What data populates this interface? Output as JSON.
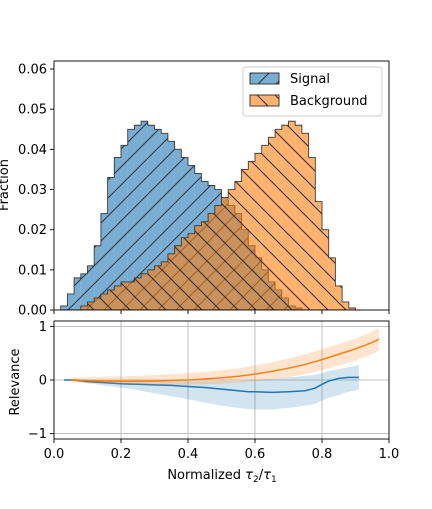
{
  "chart_data": [
    {
      "type": "histogram",
      "panel": "top",
      "ylabel": "Fraction",
      "xlim": [
        0.0,
        1.0
      ],
      "ylim": [
        0.0,
        0.062
      ],
      "yticks": [
        0.0,
        0.01,
        0.02,
        0.03,
        0.04,
        0.05,
        0.06
      ],
      "ytick_labels": [
        "0.00",
        "0.01",
        "0.02",
        "0.03",
        "0.04",
        "0.05",
        "0.06"
      ],
      "grid": false,
      "legend_position": "upper-right",
      "bin_width": 0.02,
      "series": [
        {
          "name": "Signal",
          "color": "#1f77b4",
          "hatch": "forward-slash",
          "bin_start": 0.02,
          "values": [
            0.001,
            0.004,
            0.008,
            0.009,
            0.011,
            0.016,
            0.024,
            0.033,
            0.038,
            0.041,
            0.045,
            0.046,
            0.047,
            0.046,
            0.045,
            0.044,
            0.042,
            0.04,
            0.038,
            0.036,
            0.034,
            0.032,
            0.031,
            0.03,
            0.028,
            0.026,
            0.024,
            0.02,
            0.016,
            0.013,
            0.01,
            0.007,
            0.005,
            0.003,
            0.001,
            0.0005
          ]
        },
        {
          "name": "Background",
          "color": "#ff7f0e",
          "hatch": "back-slash",
          "bin_start": 0.08,
          "values": [
            0.001,
            0.002,
            0.003,
            0.004,
            0.005,
            0.006,
            0.007,
            0.007,
            0.008,
            0.009,
            0.01,
            0.011,
            0.012,
            0.014,
            0.016,
            0.018,
            0.019,
            0.021,
            0.022,
            0.024,
            0.026,
            0.028,
            0.03,
            0.032,
            0.035,
            0.037,
            0.039,
            0.041,
            0.043,
            0.045,
            0.046,
            0.047,
            0.046,
            0.044,
            0.038,
            0.027,
            0.02,
            0.013,
            0.006,
            0.002,
            0.0005,
            0.0
          ]
        }
      ]
    },
    {
      "type": "line",
      "panel": "bottom",
      "xlabel": "Normalized τ₂/τ₁",
      "xlabel_parts": {
        "prefix": "Normalized ",
        "tau": "τ",
        "sub_a": "2",
        "slash": "/",
        "sub_b": "1"
      },
      "ylabel": "Relevance",
      "xlim": [
        0.0,
        1.0
      ],
      "ylim": [
        -1.1,
        1.1
      ],
      "xticks": [
        0.0,
        0.2,
        0.4,
        0.6,
        0.8,
        1.0
      ],
      "xtick_labels": [
        "0.0",
        "0.2",
        "0.4",
        "0.6",
        "0.8",
        "1.0"
      ],
      "yticks": [
        -1,
        0,
        1
      ],
      "ytick_labels": [
        "−1",
        "0",
        "1"
      ],
      "grid": true,
      "series": [
        {
          "color": "#1f77b4",
          "x": [
            0.03,
            0.06,
            0.1,
            0.15,
            0.2,
            0.25,
            0.3,
            0.35,
            0.4,
            0.45,
            0.5,
            0.55,
            0.58,
            0.6,
            0.65,
            0.7,
            0.75,
            0.78,
            0.8,
            0.82,
            0.85,
            0.88,
            0.91
          ],
          "y": [
            0.0,
            0.0,
            -0.03,
            -0.05,
            -0.07,
            -0.08,
            -0.09,
            -0.1,
            -0.12,
            -0.14,
            -0.17,
            -0.2,
            -0.22,
            -0.22,
            -0.23,
            -0.22,
            -0.2,
            -0.15,
            -0.08,
            -0.02,
            0.03,
            0.05,
            0.05
          ],
          "band_upper": [
            0.01,
            0.02,
            0.0,
            -0.01,
            -0.02,
            -0.02,
            -0.02,
            -0.02,
            -0.02,
            -0.02,
            -0.02,
            -0.02,
            -0.01,
            0.0,
            0.02,
            0.05,
            0.08,
            0.1,
            0.13,
            0.17,
            0.2,
            0.24,
            0.28
          ],
          "band_lower": [
            -0.01,
            -0.03,
            -0.06,
            -0.1,
            -0.14,
            -0.19,
            -0.25,
            -0.3,
            -0.36,
            -0.42,
            -0.48,
            -0.52,
            -0.54,
            -0.55,
            -0.55,
            -0.52,
            -0.48,
            -0.44,
            -0.38,
            -0.33,
            -0.28,
            -0.22,
            -0.18
          ]
        },
        {
          "color": "#ff7f0e",
          "x": [
            0.05,
            0.1,
            0.15,
            0.2,
            0.25,
            0.3,
            0.35,
            0.4,
            0.45,
            0.5,
            0.55,
            0.6,
            0.65,
            0.7,
            0.75,
            0.8,
            0.85,
            0.9,
            0.95,
            0.97
          ],
          "y": [
            0.0,
            -0.01,
            -0.02,
            -0.02,
            -0.02,
            -0.02,
            -0.01,
            0.0,
            0.02,
            0.04,
            0.07,
            0.11,
            0.16,
            0.22,
            0.29,
            0.38,
            0.48,
            0.58,
            0.7,
            0.76
          ],
          "band_upper": [
            0.04,
            0.05,
            0.06,
            0.07,
            0.08,
            0.09,
            0.11,
            0.13,
            0.15,
            0.18,
            0.22,
            0.27,
            0.33,
            0.4,
            0.48,
            0.57,
            0.67,
            0.77,
            0.9,
            0.97
          ],
          "band_lower": [
            -0.03,
            -0.05,
            -0.07,
            -0.08,
            -0.09,
            -0.09,
            -0.09,
            -0.09,
            -0.08,
            -0.07,
            -0.05,
            -0.02,
            0.01,
            0.05,
            0.11,
            0.18,
            0.27,
            0.36,
            0.48,
            0.55
          ]
        }
      ]
    }
  ]
}
